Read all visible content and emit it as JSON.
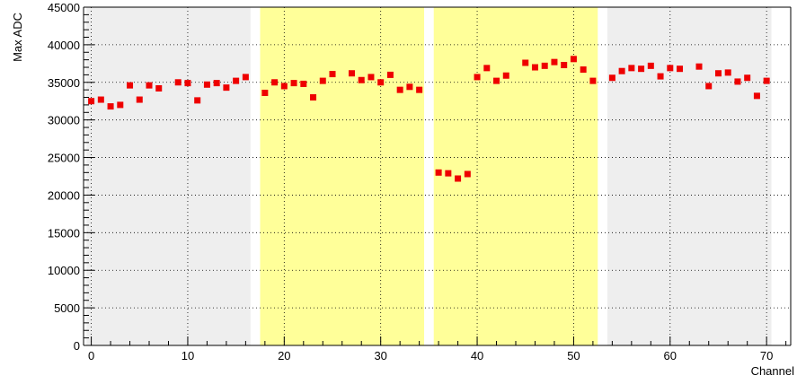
{
  "chart_data": {
    "type": "scatter",
    "xlabel": "Channel",
    "ylabel": "Max ADC",
    "xlim": [
      -0.8,
      72.5
    ],
    "ylim": [
      0,
      45000
    ],
    "grid": true,
    "x_ticks": [
      "0",
      "10",
      "20",
      "30",
      "40",
      "50",
      "60",
      "70"
    ],
    "y_ticks": [
      "0",
      "5000",
      "10000",
      "15000",
      "20000",
      "25000",
      "30000",
      "35000",
      "40000",
      "45000"
    ],
    "marker_color": "#ee0000",
    "regions": [
      {
        "x0": -0.5,
        "x1": 16.5,
        "color": "#eeeeee"
      },
      {
        "x0": 17.5,
        "x1": 34.5,
        "color": "#ffff99"
      },
      {
        "x0": 35.5,
        "x1": 52.5,
        "color": "#ffff99"
      },
      {
        "x0": 53.5,
        "x1": 70.5,
        "color": "#eeeeee"
      }
    ],
    "points": {
      "x": [
        0,
        1,
        2,
        3,
        4,
        5,
        6,
        7,
        9,
        10,
        11,
        12,
        13,
        14,
        15,
        16,
        18,
        19,
        20,
        21,
        22,
        23,
        24,
        25,
        27,
        28,
        29,
        30,
        31,
        32,
        33,
        34,
        36,
        37,
        38,
        39,
        40,
        41,
        42,
        43,
        45,
        46,
        47,
        48,
        49,
        50,
        51,
        52,
        54,
        55,
        56,
        57,
        58,
        59,
        60,
        61,
        63,
        64,
        65,
        66,
        67,
        68,
        69,
        70
      ],
      "y": [
        32500,
        32700,
        31800,
        32000,
        34600,
        32700,
        34600,
        34200,
        35000,
        34900,
        32600,
        34700,
        34900,
        34300,
        35200,
        35700,
        33600,
        35000,
        34500,
        34900,
        34800,
        33000,
        35200,
        36100,
        36200,
        35300,
        35700,
        35000,
        36000,
        34000,
        34400,
        34000,
        23000,
        22900,
        22200,
        22800,
        35700,
        36900,
        35200,
        35900,
        37600,
        37000,
        37200,
        37700,
        37300,
        38100,
        36700,
        35200,
        35600,
        36500,
        36900,
        36800,
        37200,
        35800,
        36900,
        36800,
        37100,
        34500,
        36200,
        36300,
        35100,
        35600,
        33200,
        35200
      ]
    }
  }
}
